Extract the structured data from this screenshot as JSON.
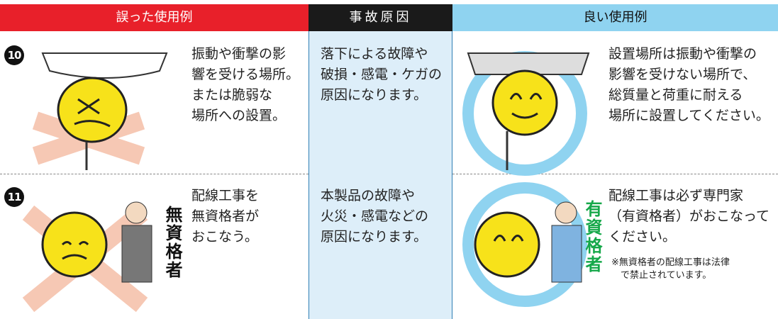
{
  "header": {
    "columns": [
      "誤った使用例",
      "事故原因",
      "良い使用例"
    ]
  },
  "rows": [
    {
      "number": "10",
      "bad": [
        "振動や衝撃の影",
        "響を受ける場所。",
        "または脆弱な",
        "場所への設置。"
      ],
      "cause": [
        "落下による故障や",
        "破損・感電・ケガの",
        "原因になります。"
      ],
      "good": [
        "設置場所は振動や衝撃の",
        "影響を受けない場所で、",
        "総質量と荷重に耐える",
        "場所に設置してください。"
      ]
    },
    {
      "number": "11",
      "bad": [
        "配線工事を",
        "無資格者が",
        "おこなう。"
      ],
      "bad_label": "無資格者",
      "cause": [
        "本製品の故障や",
        "火災・感電などの",
        "原因になります。"
      ],
      "good": [
        "配線工事は必ず専門家",
        "（有資格者）がおこなって",
        "ください。"
      ],
      "good_label": "有資格者",
      "note": [
        "※無資格者の配線工事は法律",
        "で禁止されています。"
      ]
    }
  ]
}
